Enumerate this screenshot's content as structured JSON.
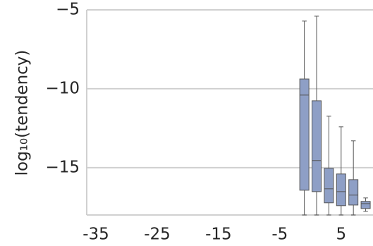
{
  "chart_data": {
    "type": "box",
    "ylabel": "log₁₀(tendency)",
    "color": "#8e9fc6",
    "boxes": [
      {
        "x": -1,
        "whislo": -18,
        "q1": -16.43,
        "med": -10.4,
        "q3": -9.38,
        "whishi": -5.71
      },
      {
        "x": 1,
        "whislo": -18,
        "q1": -16.52,
        "med": -14.55,
        "q3": -10.76,
        "whishi": -5.4
      },
      {
        "x": 3,
        "whislo": -18,
        "q1": -17.23,
        "med": -16.34,
        "q3": -15.04,
        "whishi": -11.74
      },
      {
        "x": 5,
        "whislo": -18,
        "q1": -17.41,
        "med": -16.52,
        "q3": -15.4,
        "whishi": -12.41
      },
      {
        "x": 7,
        "whislo": -18,
        "q1": -17.37,
        "med": -16.74,
        "q3": -15.76,
        "whishi": -13.3
      },
      {
        "x": 9,
        "whislo": -17.77,
        "q1": -17.59,
        "med": -17.28,
        "q3": -17.14,
        "whishi": -16.92
      }
    ],
    "xlim": [
      -36.5,
      10.2
    ],
    "xticks": [
      -35,
      -25,
      -15,
      -5,
      5
    ],
    "ylim": [
      -18,
      -5
    ],
    "yticks": [
      {
        "value": -5,
        "label": "−5"
      },
      {
        "value": -10,
        "label": "−10"
      },
      {
        "value": -15,
        "label": "−15"
      }
    ],
    "grid": true
  }
}
